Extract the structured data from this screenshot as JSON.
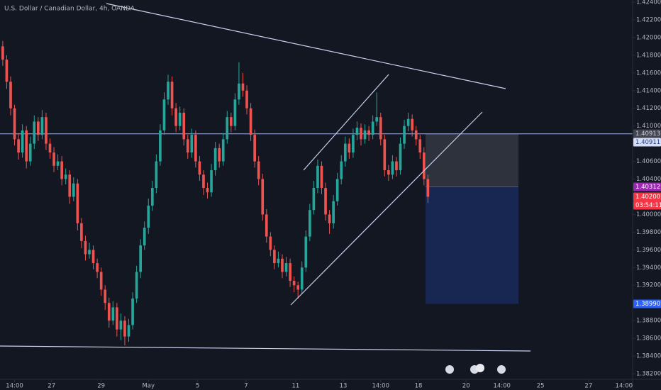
{
  "chart_data": {
    "type": "candlestick",
    "title": "U.S. Dollar / Canadian Dollar, 4h, OANDA",
    "up_color": "#26a69a",
    "down_color": "#ef5350",
    "xlim": [
      -0.7,
      160
    ],
    "xticks": [
      {
        "value": 3,
        "label": "14:00"
      },
      {
        "value": 12.4,
        "label": "27"
      },
      {
        "value": 25,
        "label": "29"
      },
      {
        "value": 37,
        "label": "May"
      },
      {
        "value": 49.5,
        "label": "5"
      },
      {
        "value": 61.8,
        "label": "7"
      },
      {
        "value": 74.4,
        "label": "11"
      },
      {
        "value": 86.5,
        "label": "13"
      },
      {
        "value": 96,
        "label": "14:00"
      },
      {
        "value": 105.6,
        "label": "18"
      },
      {
        "value": 117.7,
        "label": "20"
      },
      {
        "value": 126.8,
        "label": "14:00"
      },
      {
        "value": 136.6,
        "label": "25"
      },
      {
        "value": 148.8,
        "label": "27"
      },
      {
        "value": 157.8,
        "label": "14:00"
      }
    ],
    "ylim": [
      1.38136,
      1.42424
    ],
    "yticks": [
      {
        "value": 1.424,
        "label": "1.42400"
      },
      {
        "value": 1.422,
        "label": "1.42200"
      },
      {
        "value": 1.42,
        "label": "1.42000"
      },
      {
        "value": 1.418,
        "label": "1.41800"
      },
      {
        "value": 1.416,
        "label": "1.41600"
      },
      {
        "value": 1.414,
        "label": "1.41400"
      },
      {
        "value": 1.412,
        "label": "1.41200"
      },
      {
        "value": 1.41,
        "label": "1.41000"
      },
      {
        "value": 1.408,
        "label": "1.40800"
      },
      {
        "value": 1.406,
        "label": "1.40600"
      },
      {
        "value": 1.404,
        "label": "1.40400"
      },
      {
        "value": 1.402,
        "label": "1.40200"
      },
      {
        "value": 1.4,
        "label": "1.40000"
      },
      {
        "value": 1.398,
        "label": "1.39800"
      },
      {
        "value": 1.396,
        "label": "1.39600"
      },
      {
        "value": 1.394,
        "label": "1.39400"
      },
      {
        "value": 1.392,
        "label": "1.39200"
      },
      {
        "value": 1.39,
        "label": "1.39000"
      },
      {
        "value": 1.388,
        "label": "1.38800"
      },
      {
        "value": 1.386,
        "label": "1.38600"
      },
      {
        "value": 1.384,
        "label": "1.38400"
      },
      {
        "value": 1.382,
        "label": "1.38200"
      }
    ],
    "ohlc": [
      [
        1.419,
        1.4196,
        1.4168,
        1.4175
      ],
      [
        1.4175,
        1.418,
        1.4142,
        1.415
      ],
      [
        1.415,
        1.4156,
        1.4112,
        1.412
      ],
      [
        1.412,
        1.4124,
        1.4078,
        1.4085
      ],
      [
        1.4085,
        1.4092,
        1.4062,
        1.407
      ],
      [
        1.407,
        1.4102,
        1.4064,
        1.4095
      ],
      [
        1.4095,
        1.41,
        1.4052,
        1.406
      ],
      [
        1.406,
        1.4088,
        1.4055,
        1.408
      ],
      [
        1.408,
        1.4112,
        1.4074,
        1.4105
      ],
      [
        1.4105,
        1.411,
        1.4083,
        1.409
      ],
      [
        1.409,
        1.4118,
        1.4085,
        1.411
      ],
      [
        1.411,
        1.4115,
        1.4073,
        1.408
      ],
      [
        1.408,
        1.4086,
        1.4063,
        1.407
      ],
      [
        1.407,
        1.4076,
        1.4048,
        1.4055
      ],
      [
        1.4055,
        1.4068,
        1.405,
        1.406
      ],
      [
        1.406,
        1.4066,
        1.4033,
        1.404
      ],
      [
        1.404,
        1.4052,
        1.4034,
        1.4045
      ],
      [
        1.4045,
        1.405,
        1.4012,
        1.402
      ],
      [
        1.402,
        1.4042,
        1.4015,
        1.4035
      ],
      [
        1.4035,
        1.404,
        1.3982,
        1.399
      ],
      [
        1.399,
        1.3996,
        1.3962,
        1.397
      ],
      [
        1.397,
        1.3976,
        1.3948,
        1.3955
      ],
      [
        1.3955,
        1.3968,
        1.395,
        1.396
      ],
      [
        1.396,
        1.3965,
        1.3938,
        1.3945
      ],
      [
        1.3945,
        1.395,
        1.3928,
        1.3935
      ],
      [
        1.3935,
        1.394,
        1.3908,
        1.3915
      ],
      [
        1.3915,
        1.392,
        1.3892,
        1.39
      ],
      [
        1.39,
        1.3906,
        1.3872,
        1.388
      ],
      [
        1.388,
        1.3902,
        1.3875,
        1.3895
      ],
      [
        1.3895,
        1.39,
        1.3862,
        1.387
      ],
      [
        1.387,
        1.3888,
        1.3858,
        1.388
      ],
      [
        1.388,
        1.3885,
        1.3852,
        1.3862
      ],
      [
        1.3862,
        1.3882,
        1.3856,
        1.3875
      ],
      [
        1.3875,
        1.3912,
        1.387,
        1.3905
      ],
      [
        1.3905,
        1.3942,
        1.39,
        1.3935
      ],
      [
        1.3935,
        1.3972,
        1.3928,
        1.3965
      ],
      [
        1.3965,
        1.3992,
        1.396,
        1.3985
      ],
      [
        1.3985,
        1.4018,
        1.3978,
        1.401
      ],
      [
        1.401,
        1.4038,
        1.4004,
        1.403
      ],
      [
        1.403,
        1.4068,
        1.4024,
        1.406
      ],
      [
        1.406,
        1.4102,
        1.4055,
        1.4095
      ],
      [
        1.4095,
        1.4138,
        1.409,
        1.413
      ],
      [
        1.413,
        1.4158,
        1.4124,
        1.415
      ],
      [
        1.415,
        1.4156,
        1.4112,
        1.412
      ],
      [
        1.412,
        1.4126,
        1.4093,
        1.41
      ],
      [
        1.41,
        1.4122,
        1.4095,
        1.4115
      ],
      [
        1.4115,
        1.412,
        1.4078,
        1.4085
      ],
      [
        1.4085,
        1.409,
        1.4063,
        1.407
      ],
      [
        1.407,
        1.4097,
        1.4064,
        1.409
      ],
      [
        1.409,
        1.4095,
        1.4053,
        1.406
      ],
      [
        1.406,
        1.4066,
        1.4038,
        1.4045
      ],
      [
        1.4045,
        1.405,
        1.4022,
        1.403
      ],
      [
        1.403,
        1.4036,
        1.4018,
        1.4025
      ],
      [
        1.4025,
        1.4057,
        1.402,
        1.405
      ],
      [
        1.405,
        1.4082,
        1.4044,
        1.4075
      ],
      [
        1.4075,
        1.408,
        1.4053,
        1.406
      ],
      [
        1.406,
        1.4092,
        1.4055,
        1.4085
      ],
      [
        1.4085,
        1.4117,
        1.408,
        1.411
      ],
      [
        1.411,
        1.4115,
        1.4093,
        1.41
      ],
      [
        1.41,
        1.4137,
        1.4095,
        1.413
      ],
      [
        1.413,
        1.4172,
        1.4124,
        1.4148
      ],
      [
        1.4148,
        1.416,
        1.4133,
        1.414
      ],
      [
        1.414,
        1.4146,
        1.4113,
        1.412
      ],
      [
        1.412,
        1.4126,
        1.4083,
        1.409
      ],
      [
        1.409,
        1.4096,
        1.4053,
        1.406
      ],
      [
        1.406,
        1.4066,
        1.4033,
        1.404
      ],
      [
        1.404,
        1.4046,
        1.3993,
        1.4
      ],
      [
        1.4,
        1.4006,
        1.3968,
        1.3975
      ],
      [
        1.3975,
        1.398,
        1.3953,
        1.396
      ],
      [
        1.396,
        1.3965,
        1.3938,
        1.3945
      ],
      [
        1.3945,
        1.3958,
        1.394,
        1.395
      ],
      [
        1.395,
        1.3955,
        1.3928,
        1.3935
      ],
      [
        1.3935,
        1.3952,
        1.393,
        1.3945
      ],
      [
        1.3945,
        1.395,
        1.3918,
        1.3925
      ],
      [
        1.3925,
        1.393,
        1.3912,
        1.392
      ],
      [
        1.392,
        1.3924,
        1.3905,
        1.3915
      ],
      [
        1.3915,
        1.3947,
        1.391,
        1.394
      ],
      [
        1.394,
        1.3982,
        1.3935,
        1.3975
      ],
      [
        1.3975,
        1.4012,
        1.397,
        1.4005
      ],
      [
        1.4005,
        1.4038,
        1.4,
        1.403
      ],
      [
        1.403,
        1.4062,
        1.4024,
        1.4055
      ],
      [
        1.4055,
        1.406,
        1.4023,
        1.403
      ],
      [
        1.403,
        1.4036,
        1.3993,
        1.4
      ],
      [
        1.4,
        1.4005,
        1.3978,
        1.399
      ],
      [
        1.399,
        1.4022,
        1.3984,
        1.4015
      ],
      [
        1.4015,
        1.4047,
        1.401,
        1.404
      ],
      [
        1.404,
        1.4067,
        1.4034,
        1.406
      ],
      [
        1.406,
        1.4088,
        1.4054,
        1.408
      ],
      [
        1.408,
        1.4086,
        1.4063,
        1.407
      ],
      [
        1.407,
        1.4097,
        1.4064,
        1.409
      ],
      [
        1.409,
        1.4105,
        1.4084,
        1.4098
      ],
      [
        1.4098,
        1.4103,
        1.4078,
        1.4085
      ],
      [
        1.4085,
        1.4102,
        1.408,
        1.4095
      ],
      [
        1.4095,
        1.41,
        1.4083,
        1.409
      ],
      [
        1.409,
        1.4112,
        1.4085,
        1.4105
      ],
      [
        1.4105,
        1.4138,
        1.41,
        1.411
      ],
      [
        1.411,
        1.4115,
        1.4078,
        1.4085
      ],
      [
        1.4085,
        1.409,
        1.4043,
        1.405
      ],
      [
        1.405,
        1.4056,
        1.4038,
        1.4045
      ],
      [
        1.4045,
        1.4067,
        1.404,
        1.406
      ],
      [
        1.406,
        1.4065,
        1.4043,
        1.405
      ],
      [
        1.405,
        1.4087,
        1.4045,
        1.408
      ],
      [
        1.408,
        1.4107,
        1.4074,
        1.41
      ],
      [
        1.41,
        1.4115,
        1.4094,
        1.4108
      ],
      [
        1.4108,
        1.4113,
        1.4088,
        1.4095
      ],
      [
        1.4095,
        1.41,
        1.4078,
        1.4085
      ],
      [
        1.4085,
        1.409,
        1.4063,
        1.407
      ],
      [
        1.407,
        1.4076,
        1.4033,
        1.404
      ],
      [
        1.404,
        1.4045,
        1.4013,
        1.402
      ]
    ],
    "price_labels": [
      {
        "value": 1.40913,
        "label": "1.40913",
        "color": "#434651",
        "text_color": "#d1d4dc"
      },
      {
        "value": 1.40911,
        "label": "1.40911",
        "color": "#d6def5",
        "text_color": "#1e3a8a"
      },
      {
        "value": 1.40312,
        "label": "1.40312",
        "color": "#9c27b0",
        "text_color": "#ffffff"
      },
      {
        "value": 1.402,
        "label": "1.40200",
        "color": "#f23645",
        "text_color": "#ffffff"
      },
      {
        "value": 1.3899,
        "label": "1.38990",
        "color": "#2962ff",
        "text_color": "#ffffff"
      }
    ],
    "countdown": "03:54:11"
  }
}
